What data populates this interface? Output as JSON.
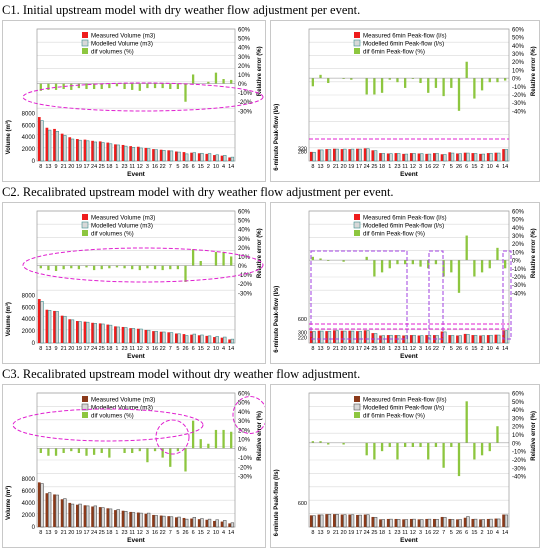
{
  "titles": [
    "C1. Initial upstream model with dry weather flow adjustment per event.",
    "C2. Recalibrated upstream model with dry weather flow adjustment per event.",
    "C3. Recalibrated upstream model without dry weather flow adjustment."
  ],
  "colors": {
    "measured_c1": "#ee1c1c",
    "measured_c3": "#8b3a1a",
    "modelled_fill": "#d8d8d8",
    "modelled_edge_c1": "#3d8f8f",
    "modelled_edge_c3": "#555555",
    "dif": "#8dc63f",
    "ellipse": "#e020d0",
    "box": "#a040e0",
    "grid": "#d9d9d9"
  },
  "chart_data": [
    {
      "id": "c1-volume",
      "type": "bar",
      "categories": [
        "8",
        "13",
        "9",
        "21",
        "20",
        "19",
        "17",
        "24",
        "25",
        "18",
        "1",
        "23",
        "11",
        "12",
        "3",
        "16",
        "22",
        "7",
        "5",
        "26",
        "6",
        "15",
        "2",
        "10",
        "4",
        "14"
      ],
      "xlabel": "Event",
      "ylabel": "Volume (m³)",
      "y2label": "Relative error (%)",
      "ylim": [
        0,
        8000
      ],
      "yticks": [
        0,
        2000,
        4000,
        6000,
        8000
      ],
      "y2ticks": [
        "-30%",
        "-20%",
        "-10%",
        "0%",
        "10%",
        "20%",
        "30%",
        "40%",
        "50%",
        "60%"
      ],
      "legend": [
        "Measured Volume (m3)",
        "Modelled Volume (m3)",
        "dif volumes (%)"
      ],
      "series": [
        {
          "values": [
            7400,
            5600,
            5400,
            4600,
            4000,
            3700,
            3600,
            3400,
            3300,
            3100,
            2800,
            2700,
            2500,
            2400,
            2200,
            2000,
            1900,
            1800,
            1600,
            1500,
            1400,
            1300,
            1200,
            1000,
            900,
            600
          ]
        },
        {
          "values": [
            6800,
            5200,
            5000,
            4300,
            3700,
            3500,
            3400,
            3200,
            3100,
            2900,
            2700,
            2500,
            2300,
            2200,
            2100,
            1900,
            1800,
            1700,
            1500,
            1200,
            1400,
            1300,
            1250,
            1050,
            950,
            650
          ]
        },
        {
          "values": [
            -8,
            -7,
            -7,
            -6,
            -7,
            -5,
            -6,
            -6,
            -6,
            -5,
            -3,
            -6,
            -7,
            -8,
            -5,
            -5,
            -5,
            -6,
            -6,
            -20,
            10,
            0,
            2,
            12,
            5,
            4
          ]
        }
      ]
    },
    {
      "id": "c1-peak",
      "type": "bar",
      "categories": [
        "8",
        "13",
        "9",
        "21",
        "20",
        "19",
        "17",
        "24",
        "25",
        "18",
        "1",
        "23",
        "11",
        "12",
        "3",
        "16",
        "22",
        "7",
        "5",
        "26",
        "6",
        "15",
        "2",
        "10",
        "4",
        "14"
      ],
      "xlabel": "Event",
      "ylabel": "6-minute Peak-flow (l/s)",
      "y2label": "Relative error (%)",
      "ylim": [
        0,
        1200
      ],
      "ytick_labels": [
        "320",
        "280"
      ],
      "y2ticks": [
        "-40%",
        "-30%",
        "-20%",
        "-10%",
        "0%",
        "10%",
        "20%",
        "30%",
        "40%",
        "50%",
        "60%"
      ],
      "legend": [
        "Measured 6min Peak-flow (l/s)",
        "Modelled 6min Peak-flow (l/s)",
        "dif 6min Peak-flow (%)"
      ],
      "series": [
        {
          "values": [
            230,
            290,
            300,
            310,
            300,
            300,
            310,
            320,
            270,
            200,
            190,
            200,
            180,
            200,
            190,
            180,
            200,
            170,
            220,
            190,
            210,
            200,
            180,
            200,
            210,
            300
          ]
        },
        {
          "values": [
            220,
            280,
            290,
            300,
            300,
            300,
            300,
            310,
            260,
            190,
            185,
            190,
            175,
            190,
            185,
            175,
            190,
            165,
            200,
            185,
            200,
            190,
            175,
            195,
            200,
            290
          ]
        },
        {
          "values": [
            -10,
            4,
            -6,
            0,
            -1,
            -2,
            0,
            -20,
            -20,
            -18,
            -2,
            -5,
            -12,
            -1,
            -6,
            -18,
            -12,
            -22,
            -12,
            -40,
            20,
            -25,
            -15,
            -5,
            -5,
            -3
          ]
        }
      ]
    },
    {
      "id": "c2-volume",
      "type": "bar",
      "categories": [
        "8",
        "13",
        "9",
        "21",
        "20",
        "19",
        "17",
        "24",
        "25",
        "18",
        "1",
        "23",
        "11",
        "12",
        "3",
        "16",
        "22",
        "7",
        "5",
        "26",
        "6",
        "15",
        "2",
        "10",
        "4",
        "14"
      ],
      "xlabel": "Event",
      "ylabel": "Volume (m³)",
      "y2label": "Relative error (%)",
      "ylim": [
        0,
        8000
      ],
      "yticks": [
        0,
        2000,
        4000,
        6000,
        8000
      ],
      "y2ticks": [
        "-30%",
        "-20%",
        "-10%",
        "0%",
        "10%",
        "20%",
        "30%",
        "40%",
        "50%",
        "60%"
      ],
      "legend": [
        "Measured Volume (m3)",
        "Modelled Volume (m3)",
        "dif volumes (%)"
      ],
      "series": [
        {
          "values": [
            7400,
            5600,
            5400,
            4600,
            4000,
            3700,
            3600,
            3400,
            3300,
            3100,
            2800,
            2700,
            2500,
            2400,
            2200,
            2000,
            1900,
            1800,
            1600,
            1500,
            1400,
            1300,
            1200,
            1000,
            900,
            600
          ]
        },
        {
          "values": [
            7000,
            5500,
            5300,
            4500,
            3900,
            3600,
            3500,
            3300,
            3200,
            3000,
            2700,
            2600,
            2450,
            2350,
            2150,
            1950,
            1850,
            1750,
            1550,
            1250,
            1500,
            1350,
            1200,
            1100,
            1000,
            650
          ]
        },
        {
          "values": [
            -3,
            -5,
            -6,
            -4,
            -3,
            -4,
            -2,
            -5,
            -4,
            -3,
            -2,
            -3,
            -4,
            -5,
            -3,
            -4,
            -5,
            -4,
            -4,
            -18,
            18,
            5,
            0,
            15,
            15,
            10
          ]
        }
      ]
    },
    {
      "id": "c2-peak",
      "type": "bar",
      "categories": [
        "8",
        "13",
        "9",
        "21",
        "20",
        "19",
        "17",
        "24",
        "25",
        "18",
        "1",
        "23",
        "11",
        "12",
        "3",
        "16",
        "22",
        "7",
        "5",
        "26",
        "6",
        "15",
        "2",
        "10",
        "4",
        "14"
      ],
      "xlabel": "Event",
      "ylabel": "6-minute Peak-flow (l/s)",
      "y2label": "Relative error (%)",
      "ylim": [
        0,
        1200
      ],
      "ytick_labels": [
        "600",
        "300",
        "220"
      ],
      "y2ticks": [
        "-40%",
        "-30%",
        "-20%",
        "-10%",
        "0%",
        "10%",
        "20%",
        "30%",
        "40%",
        "50%",
        "60%"
      ],
      "legend": [
        "Measured 6min Peak-flow (l/s)",
        "Modelled 6min Peak-flow (l/s)",
        "dif 6min Peak-flow (%)"
      ],
      "series": [
        {
          "values": [
            300,
            310,
            300,
            320,
            310,
            310,
            300,
            320,
            250,
            190,
            200,
            200,
            190,
            200,
            190,
            200,
            200,
            290,
            200,
            190,
            230,
            200,
            190,
            200,
            210,
            320
          ]
        },
        {
          "values": [
            290,
            300,
            295,
            310,
            300,
            300,
            295,
            310,
            240,
            185,
            195,
            190,
            185,
            195,
            185,
            195,
            190,
            280,
            190,
            185,
            220,
            195,
            185,
            195,
            200,
            310
          ]
        },
        {
          "values": [
            4,
            2,
            -1,
            0,
            -2,
            0,
            0,
            4,
            -20,
            -15,
            -10,
            -5,
            -5,
            -5,
            -8,
            -10,
            -5,
            -20,
            -15,
            -40,
            30,
            -20,
            -15,
            -10,
            15,
            -10
          ]
        }
      ]
    },
    {
      "id": "c3-volume",
      "type": "bar",
      "categories": [
        "8",
        "13",
        "9",
        "21",
        "20",
        "19",
        "17",
        "24",
        "25",
        "18",
        "1",
        "23",
        "11",
        "12",
        "3",
        "16",
        "22",
        "7",
        "5",
        "26",
        "6",
        "15",
        "2",
        "10",
        "4",
        "14"
      ],
      "xlabel": "Event",
      "ylabel": "Volume (m³)",
      "y2label": "Relative error (%)",
      "ylim": [
        0,
        8000
      ],
      "yticks": [
        0,
        2000,
        4000,
        6000,
        8000
      ],
      "y2ticks": [
        "-30%",
        "-20%",
        "-10%",
        "0%",
        "10%",
        "20%",
        "30%",
        "40%",
        "50%",
        "60%"
      ],
      "legend": [
        "Measured Volume (m3)",
        "Modelled Volume (m3)",
        "dif volumes (%)"
      ],
      "series": [
        {
          "values": [
            7400,
            5600,
            5400,
            4600,
            4000,
            3700,
            3600,
            3400,
            3300,
            3100,
            2800,
            2700,
            2500,
            2400,
            2200,
            2000,
            1900,
            1800,
            1600,
            1500,
            1400,
            1300,
            1200,
            1000,
            900,
            600
          ]
        },
        {
          "values": [
            7200,
            5700,
            5300,
            4700,
            3800,
            3800,
            3500,
            3500,
            3200,
            3000,
            2900,
            2600,
            2400,
            2300,
            2300,
            1900,
            1800,
            1700,
            1650,
            1300,
            1600,
            1400,
            1300,
            1200,
            1100,
            700
          ]
        },
        {
          "values": [
            -5,
            -8,
            -8,
            -5,
            -3,
            -5,
            -8,
            -7,
            -5,
            -10,
            0,
            -5,
            -5,
            -3,
            -15,
            -3,
            -10,
            -20,
            -3,
            -25,
            30,
            10,
            5,
            20,
            20,
            18
          ]
        }
      ]
    },
    {
      "id": "c3-peak",
      "type": "bar",
      "categories": [
        "8",
        "13",
        "9",
        "21",
        "20",
        "19",
        "17",
        "24",
        "25",
        "18",
        "1",
        "23",
        "11",
        "12",
        "3",
        "16",
        "22",
        "7",
        "5",
        "26",
        "6",
        "15",
        "2",
        "10",
        "4",
        "14"
      ],
      "xlabel": "Event",
      "ylabel": "6-minute Peak-flow (l/s)",
      "y2label": "Relative error (%)",
      "ylim": [
        0,
        1200
      ],
      "ytick_labels": [
        "600"
      ],
      "y2ticks": [
        "-40%",
        "-30%",
        "-20%",
        "-10%",
        "0%",
        "10%",
        "20%",
        "30%",
        "40%",
        "50%",
        "60%"
      ],
      "legend": [
        "Measured 6min Peak-flow (l/s)",
        "Modelled 6min Peak-flow (l/s)",
        "dif 6min Peak-flow (%)"
      ],
      "series": [
        {
          "values": [
            290,
            310,
            320,
            320,
            310,
            310,
            300,
            310,
            250,
            190,
            200,
            200,
            190,
            200,
            190,
            200,
            200,
            250,
            200,
            190,
            230,
            200,
            190,
            200,
            210,
            310
          ]
        },
        {
          "values": [
            280,
            300,
            315,
            315,
            305,
            305,
            295,
            305,
            240,
            185,
            195,
            190,
            185,
            195,
            185,
            195,
            190,
            240,
            190,
            185,
            260,
            195,
            185,
            195,
            200,
            300
          ]
        },
        {
          "values": [
            2,
            2,
            -2,
            0,
            -2,
            0,
            0,
            -15,
            -20,
            -10,
            -5,
            -20,
            -5,
            -5,
            -5,
            -20,
            -5,
            -30,
            -5,
            -40,
            50,
            -20,
            -15,
            -10,
            20,
            0
          ]
        }
      ]
    }
  ]
}
